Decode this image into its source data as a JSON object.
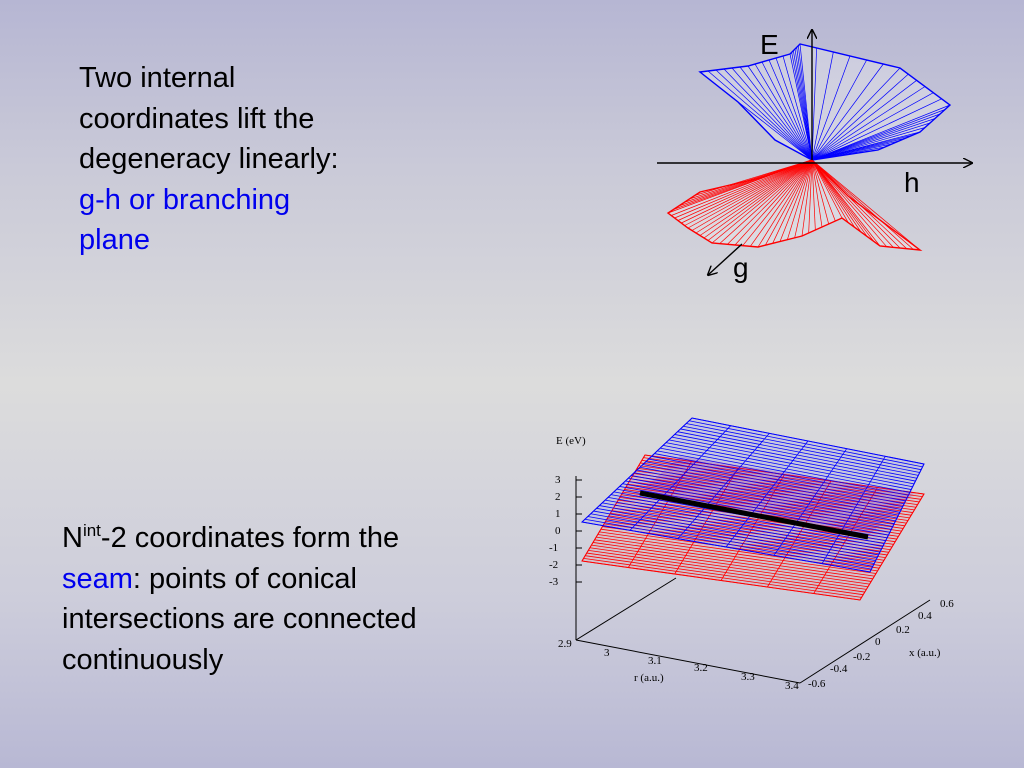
{
  "top_text": {
    "line1": "Two internal",
    "line2": "coordinates lift the",
    "line3": "degeneracy linearly:",
    "line4": "g-h or branching",
    "line5": "plane"
  },
  "bottom_text": {
    "n": "N",
    "sup": "int",
    "rest1": "-2 coordinates form the",
    "seam": "seam",
    "rest2": ": points of conical",
    "line3": "intersections are connected",
    "line4": "continuously"
  },
  "cone_figure": {
    "e_label": "E",
    "h_label": "h",
    "g_label": "g",
    "upper_color": "#0000ff",
    "lower_color": "#ff0000"
  },
  "seam_plot": {
    "z_label": "E (eV)",
    "z_ticks": [
      "3",
      "2",
      "1",
      "0",
      "-1",
      "-2",
      "-3"
    ],
    "r_label": "r (a.u.)",
    "r_ticks": [
      "2.9",
      "3",
      "3.1",
      "3.2",
      "3.3",
      "3.4"
    ],
    "x_label": "x (a.u.)",
    "x_ticks": [
      "-0.6",
      "-0.4",
      "-0.2",
      "0",
      "0.2",
      "0.4",
      "0.6"
    ],
    "upper_color": "#0000ff",
    "lower_color": "#ff0000",
    "seam_color": "#000000"
  }
}
